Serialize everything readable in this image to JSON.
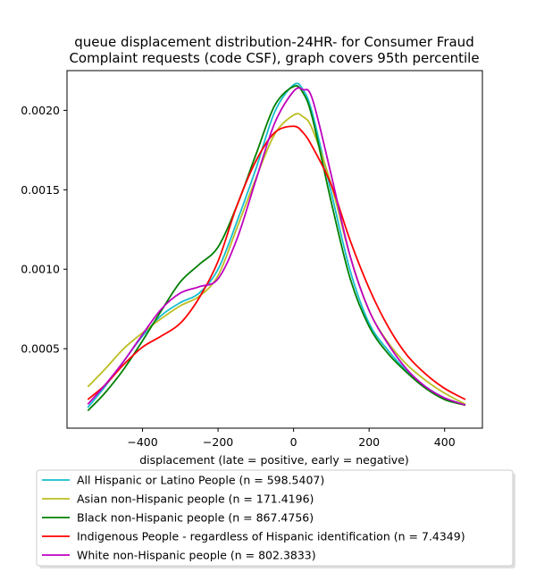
{
  "chart_data": {
    "type": "line",
    "title_lines": [
      "queue displacement distribution-24HR-  for Consumer Fraud",
      "Complaint  requests (code CSF), graph covers 95th percentile"
    ],
    "xlabel": "displacement (late = positive, early = negative)",
    "ylabel": "",
    "xlim": [
      -600,
      500
    ],
    "ylim": [
      0,
      0.00225
    ],
    "xticks": [
      -400,
      -200,
      0,
      200,
      400
    ],
    "yticks": [
      0.0005,
      0.001,
      0.0015,
      0.002
    ],
    "xtick_labels": [
      "−400",
      "−200",
      "0",
      "200",
      "400"
    ],
    "ytick_labels": [
      "0.0005",
      "0.0010",
      "0.0015",
      "0.0020"
    ],
    "grid": false,
    "legend_position": "below",
    "series": [
      {
        "name": "All Hispanic or Latino People (n = 598.5407)",
        "color": "#17becf",
        "x": [
          -545,
          -500,
          -450,
          -400,
          -350,
          -300,
          -250,
          -200,
          -150,
          -100,
          -50,
          0,
          25,
          50,
          100,
          150,
          200,
          250,
          300,
          350,
          400,
          455
        ],
        "y": [
          0.00013,
          0.00026,
          0.00042,
          0.00058,
          0.00071,
          0.00079,
          0.00085,
          0.001,
          0.0013,
          0.00163,
          0.00199,
          0.00216,
          0.00213,
          0.00198,
          0.00148,
          0.00099,
          0.00066,
          0.00049,
          0.00036,
          0.00026,
          0.00019,
          0.000145
        ]
      },
      {
        "name": "Asian non-Hispanic people (n = 171.4196)",
        "color": "#bcbd22",
        "x": [
          -545,
          -500,
          -450,
          -400,
          -350,
          -300,
          -250,
          -200,
          -150,
          -100,
          -50,
          0,
          25,
          50,
          100,
          150,
          200,
          250,
          300,
          350,
          400,
          455
        ],
        "y": [
          0.00026,
          0.00037,
          0.0005,
          0.0006,
          0.00069,
          0.00077,
          0.00083,
          0.00096,
          0.00126,
          0.00157,
          0.00185,
          0.00197,
          0.00196,
          0.00188,
          0.00153,
          0.00108,
          0.00074,
          0.00054,
          0.0004,
          0.0003,
          0.00022,
          0.00015
        ]
      },
      {
        "name": "Black non-Hispanic people (n = 867.4756)",
        "color": "#008000",
        "x": [
          -545,
          -500,
          -450,
          -400,
          -350,
          -300,
          -250,
          -200,
          -150,
          -100,
          -50,
          0,
          25,
          50,
          100,
          150,
          200,
          250,
          300,
          350,
          400,
          455
        ],
        "y": [
          0.00011,
          0.00022,
          0.00037,
          0.00055,
          0.00074,
          0.00092,
          0.00103,
          0.00114,
          0.0014,
          0.00172,
          0.00203,
          0.00215,
          0.00211,
          0.00195,
          0.00142,
          0.00094,
          0.00064,
          0.00047,
          0.00035,
          0.00025,
          0.00018,
          0.000145
        ]
      },
      {
        "name": "Indigenous People - regardless of Hispanic identification (n = 7.4349)",
        "color": "#ff0000",
        "x": [
          -545,
          -500,
          -450,
          -400,
          -350,
          -300,
          -250,
          -200,
          -150,
          -100,
          -50,
          0,
          25,
          50,
          100,
          150,
          200,
          250,
          300,
          350,
          400,
          455
        ],
        "y": [
          0.00018,
          0.00027,
          0.0004,
          0.00051,
          0.00058,
          0.00066,
          0.00082,
          0.00105,
          0.0014,
          0.00168,
          0.00186,
          0.0019,
          0.00186,
          0.00177,
          0.00153,
          0.00118,
          0.00088,
          0.00064,
          0.00046,
          0.00034,
          0.00025,
          0.00018
        ]
      },
      {
        "name": "White non-Hispanic people (n = 802.3833)",
        "color": "#bf00bf",
        "x": [
          -545,
          -500,
          -450,
          -400,
          -350,
          -300,
          -250,
          -200,
          -150,
          -100,
          -50,
          0,
          25,
          50,
          100,
          150,
          200,
          250,
          300,
          350,
          400,
          455
        ],
        "y": [
          0.00015,
          0.00027,
          0.00042,
          0.00059,
          0.00075,
          0.00085,
          0.00089,
          0.00094,
          0.00119,
          0.00156,
          0.00192,
          0.00212,
          0.00213,
          0.00207,
          0.00159,
          0.00108,
          0.00074,
          0.00053,
          0.00037,
          0.00026,
          0.00019,
          0.000145
        ]
      }
    ]
  }
}
